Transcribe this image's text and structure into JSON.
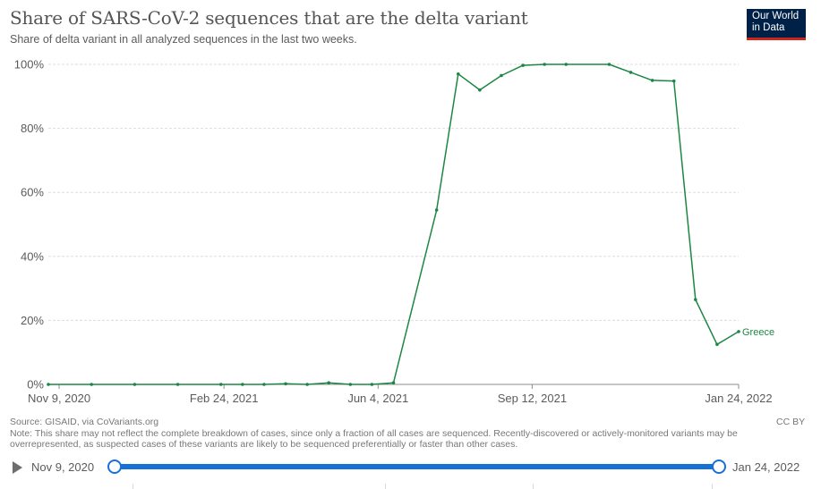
{
  "header": {
    "title": "Share of SARS-CoV-2 sequences that are the delta variant",
    "subtitle": "Share of delta variant in all analyzed sequences in the last two weeks.",
    "logo_line1": "Our World",
    "logo_line2": "in Data"
  },
  "footer": {
    "source": "Source: GISAID, via CoVariants.org",
    "note": "Note: This share may not reflect the complete breakdown of cases, since only a fraction of all cases are sequenced. Recently-discovered or actively-monitored variants may be overrepresented, as suspected cases of these variants are likely to be sequenced preferentially or faster than other cases.",
    "license": "CC BY"
  },
  "timeline": {
    "start_label": "Nov 9, 2020",
    "end_label": "Jan 24, 2022"
  },
  "colors": {
    "line": "#1b8743",
    "grid": "#dddddd",
    "axis_text": "#5b5b5b",
    "slider": "#1670d6"
  },
  "chart_data": {
    "type": "line",
    "title": "Share of SARS-CoV-2 sequences that are the delta variant",
    "subtitle": "Share of delta variant in all analyzed sequences in the last two weeks.",
    "xlabel": "",
    "ylabel": "",
    "x_ticks": [
      "Nov 9, 2020",
      "Feb 24, 2021",
      "Jun 4, 2021",
      "Sep 12, 2021",
      "Jan 24, 2022"
    ],
    "y_ticks": [
      "0%",
      "20%",
      "40%",
      "60%",
      "80%",
      "100%"
    ],
    "ylim": [
      0,
      100
    ],
    "grid": "horizontal dashed",
    "series": [
      {
        "name": "Greece",
        "points": [
          {
            "date": "2020-11-02",
            "value": 0
          },
          {
            "date": "2020-11-30",
            "value": 0
          },
          {
            "date": "2020-12-28",
            "value": 0
          },
          {
            "date": "2021-01-25",
            "value": 0
          },
          {
            "date": "2021-02-22",
            "value": 0
          },
          {
            "date": "2021-03-08",
            "value": 0
          },
          {
            "date": "2021-03-22",
            "value": 0
          },
          {
            "date": "2021-04-05",
            "value": 0.2
          },
          {
            "date": "2021-04-19",
            "value": 0
          },
          {
            "date": "2021-05-03",
            "value": 0.5
          },
          {
            "date": "2021-05-17",
            "value": 0
          },
          {
            "date": "2021-05-31",
            "value": 0
          },
          {
            "date": "2021-06-14",
            "value": 0.5
          },
          {
            "date": "2021-07-12",
            "value": 54.5
          },
          {
            "date": "2021-07-26",
            "value": 97
          },
          {
            "date": "2021-08-09",
            "value": 92
          },
          {
            "date": "2021-08-23",
            "value": 96.5
          },
          {
            "date": "2021-09-06",
            "value": 99.7
          },
          {
            "date": "2021-09-20",
            "value": 100
          },
          {
            "date": "2021-10-04",
            "value": 100
          },
          {
            "date": "2021-11-01",
            "value": 100
          },
          {
            "date": "2021-11-15",
            "value": 97.5
          },
          {
            "date": "2021-11-29",
            "value": 95
          },
          {
            "date": "2021-12-13",
            "value": 94.8
          },
          {
            "date": "2021-12-27",
            "value": 26.5
          },
          {
            "date": "2022-01-10",
            "value": 12.5
          },
          {
            "date": "2022-01-24",
            "value": 16.5
          }
        ]
      }
    ]
  }
}
